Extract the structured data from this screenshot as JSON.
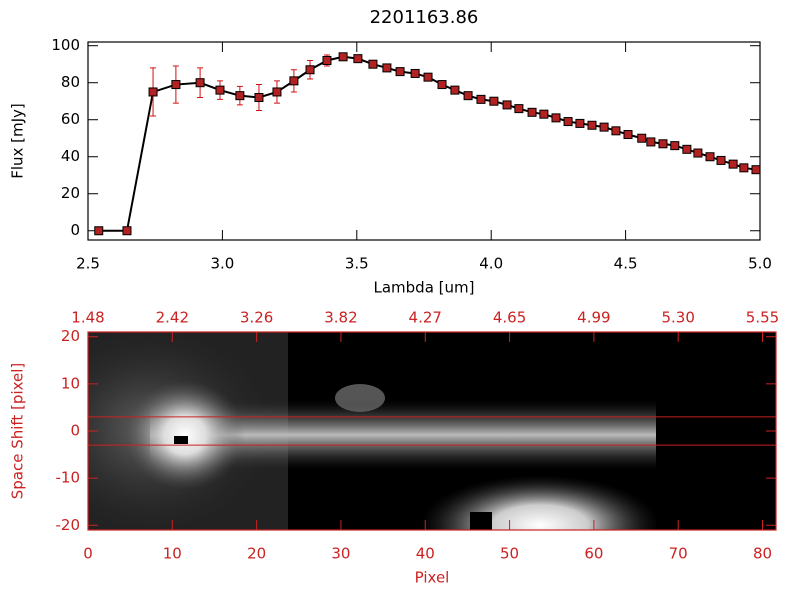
{
  "chart_data": [
    {
      "type": "line",
      "title": "2201163.86",
      "xlabel": "Lambda [um]",
      "ylabel": "Flux [mJy]",
      "x": [
        2.54,
        2.645,
        2.742,
        2.827,
        2.917,
        2.991,
        3.065,
        3.136,
        3.203,
        3.266,
        3.326,
        3.389,
        3.449,
        3.504,
        3.56,
        3.612,
        3.661,
        3.717,
        3.765,
        3.817,
        3.865,
        3.914,
        3.962,
        4.01,
        4.059,
        4.103,
        4.152,
        4.196,
        4.241,
        4.286,
        4.33,
        4.375,
        4.42,
        4.464,
        4.509,
        4.56,
        4.594,
        4.639,
        4.683,
        4.728,
        4.769,
        4.814,
        4.855,
        4.9,
        4.94,
        4.985
      ],
      "values": [
        0,
        0,
        75,
        79,
        80,
        76,
        73,
        72,
        75,
        81,
        87,
        92,
        94,
        93,
        90,
        88,
        86,
        85,
        83,
        79,
        76,
        73,
        71,
        70,
        68,
        66,
        64,
        63,
        61,
        59,
        58,
        57,
        56,
        54,
        52,
        50,
        48,
        47,
        46,
        44,
        42,
        40,
        38,
        36,
        34,
        33
      ],
      "errors": [
        0,
        0,
        13,
        10,
        8,
        5,
        5,
        7,
        6,
        6,
        5,
        3,
        2,
        1.5,
        1.5,
        1,
        1,
        1,
        1,
        1,
        1,
        1,
        1,
        1,
        1,
        1,
        1,
        1,
        1,
        1,
        1,
        1,
        1,
        1,
        1,
        1,
        1,
        1,
        1,
        1,
        1,
        1,
        1,
        1,
        1,
        1
      ],
      "color": "#000000",
      "marker_color": "#b22222",
      "error_color": "#d01010",
      "xlim": [
        2.5,
        5.0
      ],
      "xticks": [
        2.5,
        {
          "value": 3,
          "label": "3.0"
        },
        3.5,
        {
          "value": 4,
          "label": "4.0"
        },
        4.5,
        {
          "value": 5,
          "label": "5.0"
        }
      ],
      "ylim": [
        -5,
        102
      ],
      "yticks": [
        0,
        20,
        40,
        60,
        80,
        100
      ]
    },
    {
      "type": "image",
      "xlabel": "Pixel",
      "ylabel": "Space Shift [pixel]",
      "color": "#cc2222",
      "xlim": [
        0,
        81.6
      ],
      "xticks": [
        0,
        10,
        20,
        30,
        40,
        50,
        60,
        70,
        80
      ],
      "x2ticks": [
        {
          "value": 0,
          "label": "1.48"
        },
        {
          "value": 10,
          "label": "2.42"
        },
        {
          "value": 20,
          "label": "3.26"
        },
        {
          "value": 30,
          "label": "3.82"
        },
        {
          "value": 40,
          "label": "4.27"
        },
        {
          "value": 50,
          "label": "4.65"
        },
        {
          "value": 60,
          "label": "4.99"
        },
        {
          "value": 70,
          "label": "5.30"
        },
        {
          "value": 80,
          "label": "5.55"
        }
      ],
      "ylim": [
        -21,
        21
      ],
      "yticks": [
        -20,
        -10,
        0,
        10,
        20
      ],
      "lines": [
        3,
        -3
      ]
    }
  ]
}
